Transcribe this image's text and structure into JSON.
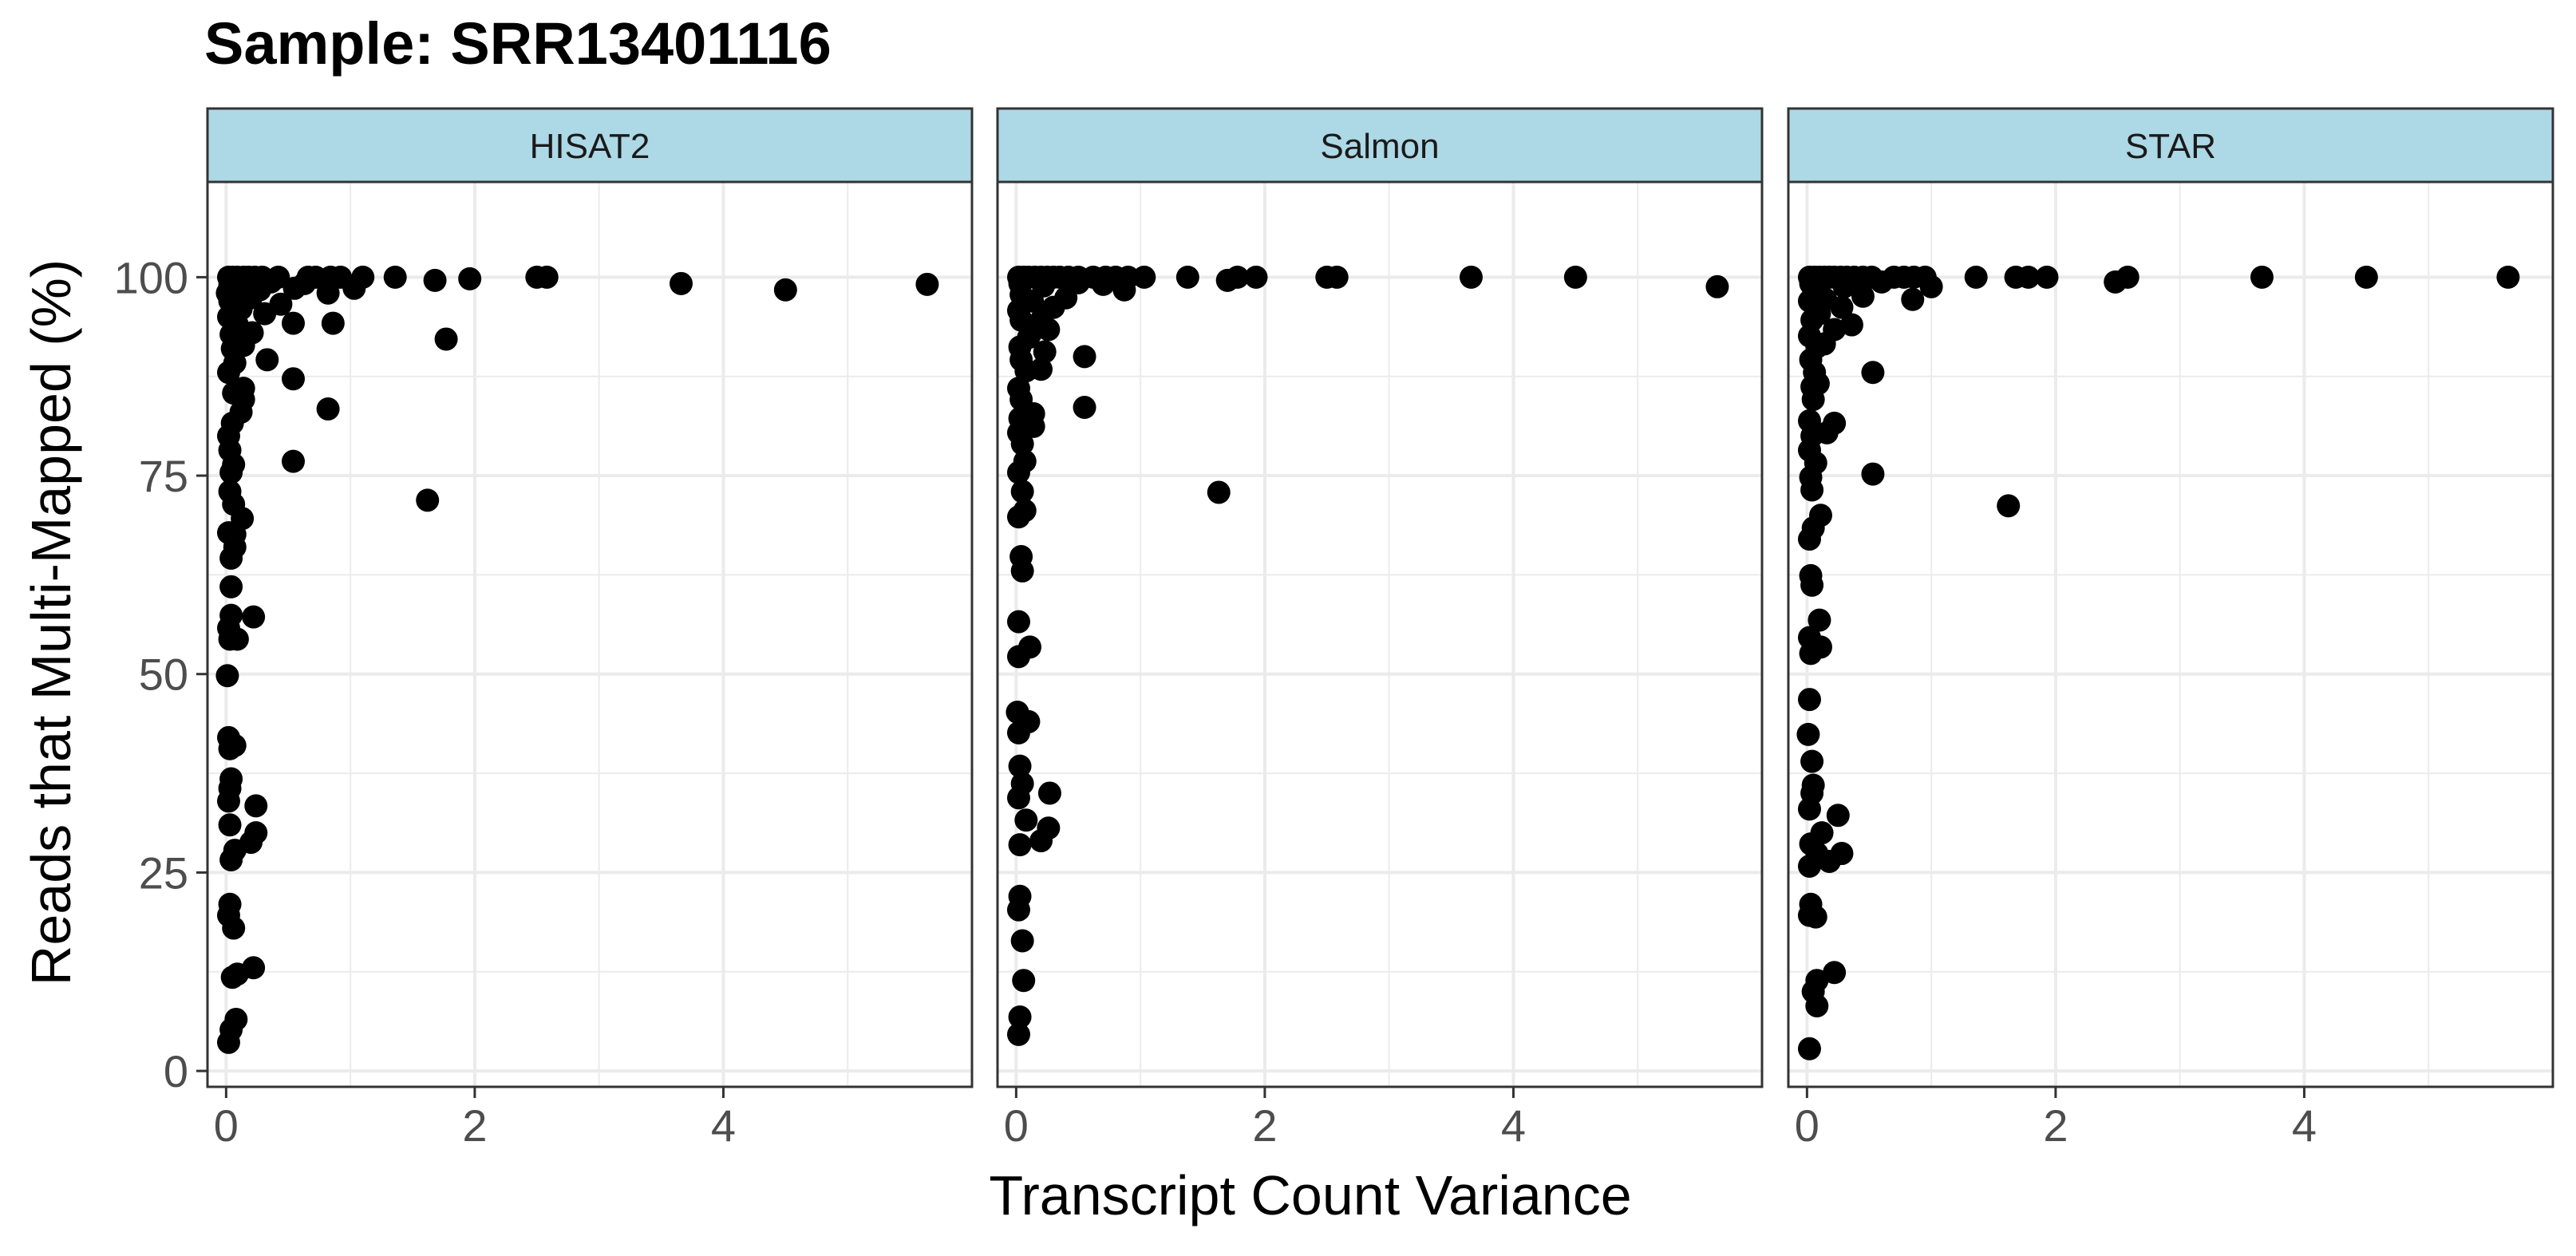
{
  "chart_data": {
    "type": "scatter",
    "title": "Sample: SRR13401116",
    "xlabel": "Transcript Count Variance",
    "ylabel": "Reads that Multi-Mapped (%)",
    "xlim": [
      -0.15,
      6.0
    ],
    "ylim": [
      -2,
      112
    ],
    "x_ticks": [
      0,
      2,
      4
    ],
    "y_ticks": [
      0,
      25,
      50,
      75,
      100
    ],
    "x_minor_ticks": [
      1,
      3,
      5
    ],
    "y_minor_ticks": [
      12.5,
      37.5,
      62.5,
      87.5
    ],
    "grid": true,
    "legend": "none",
    "colors": {
      "point": "#000000",
      "strip_fill": "#add8e6",
      "grid": "#ebebeb",
      "panel_border": "#333333"
    },
    "panels": [
      {
        "name": "HISAT2",
        "points": [
          [
            0.02,
            3.6
          ],
          [
            0.04,
            5.2
          ],
          [
            0.08,
            6.5
          ],
          [
            0.05,
            11.8
          ],
          [
            0.09,
            12.2
          ],
          [
            0.22,
            13.0
          ],
          [
            0.06,
            18.0
          ],
          [
            0.02,
            19.6
          ],
          [
            0.03,
            21.0
          ],
          [
            0.04,
            26.6
          ],
          [
            0.07,
            27.8
          ],
          [
            0.2,
            28.8
          ],
          [
            0.24,
            30.0
          ],
          [
            0.03,
            31.0
          ],
          [
            0.24,
            33.4
          ],
          [
            0.02,
            34.0
          ],
          [
            0.03,
            35.6
          ],
          [
            0.04,
            36.8
          ],
          [
            0.03,
            40.6
          ],
          [
            0.07,
            41.0
          ],
          [
            0.02,
            42.0
          ],
          [
            0.01,
            49.8
          ],
          [
            0.03,
            54.4
          ],
          [
            0.09,
            54.4
          ],
          [
            0.02,
            55.8
          ],
          [
            0.04,
            57.4
          ],
          [
            0.22,
            57.2
          ],
          [
            0.04,
            61.0
          ],
          [
            0.04,
            64.6
          ],
          [
            0.07,
            66.0
          ],
          [
            0.02,
            67.8
          ],
          [
            0.07,
            67.6
          ],
          [
            0.13,
            69.6
          ],
          [
            0.06,
            71.4
          ],
          [
            1.62,
            71.9
          ],
          [
            0.03,
            73.0
          ],
          [
            0.04,
            75.4
          ],
          [
            0.06,
            76.4
          ],
          [
            0.54,
            76.8
          ],
          [
            0.03,
            78.2
          ],
          [
            0.02,
            80.0
          ],
          [
            0.05,
            81.6
          ],
          [
            0.12,
            83.0
          ],
          [
            0.14,
            84.6
          ],
          [
            0.82,
            83.4
          ],
          [
            0.06,
            85.4
          ],
          [
            0.14,
            86.0
          ],
          [
            0.54,
            87.2
          ],
          [
            0.02,
            88.0
          ],
          [
            0.07,
            89.2
          ],
          [
            0.33,
            89.6
          ],
          [
            0.05,
            91.0
          ],
          [
            0.14,
            91.4
          ],
          [
            1.77,
            92.2
          ],
          [
            0.04,
            92.8
          ],
          [
            0.21,
            93.0
          ],
          [
            0.09,
            94.0
          ],
          [
            0.54,
            94.2
          ],
          [
            0.86,
            94.2
          ],
          [
            0.02,
            95.0
          ],
          [
            0.31,
            95.4
          ],
          [
            0.12,
            96.0
          ],
          [
            0.44,
            96.6
          ],
          [
            0.03,
            97.0
          ],
          [
            0.2,
            97.4
          ],
          [
            0.01,
            98.0
          ],
          [
            0.09,
            98.2
          ],
          [
            0.27,
            98.4
          ],
          [
            0.55,
            98.6
          ],
          [
            0.82,
            98.0
          ],
          [
            1.03,
            98.6
          ],
          [
            4.5,
            98.4
          ],
          [
            0.03,
            99.0
          ],
          [
            0.11,
            99.2
          ],
          [
            0.22,
            99.4
          ],
          [
            0.36,
            99.4
          ],
          [
            0.63,
            99.2
          ],
          [
            1.68,
            99.6
          ],
          [
            3.66,
            99.2
          ],
          [
            5.64,
            99.1
          ],
          [
            0.02,
            100.0
          ],
          [
            0.05,
            100.0
          ],
          [
            0.09,
            100.0
          ],
          [
            0.14,
            100.0
          ],
          [
            0.18,
            100.0
          ],
          [
            0.23,
            100.0
          ],
          [
            0.29,
            100.0
          ],
          [
            0.42,
            100.0
          ],
          [
            0.66,
            100.0
          ],
          [
            0.72,
            100.0
          ],
          [
            0.84,
            100.0
          ],
          [
            0.92,
            100.0
          ],
          [
            1.1,
            100.0
          ],
          [
            1.36,
            100.0
          ],
          [
            1.96,
            99.8
          ],
          [
            2.5,
            100.0
          ],
          [
            2.58,
            100.0
          ]
        ]
      },
      {
        "name": "Salmon",
        "points": [
          [
            0.02,
            4.6
          ],
          [
            0.03,
            6.8
          ],
          [
            0.06,
            11.4
          ],
          [
            0.05,
            16.4
          ],
          [
            0.02,
            20.3
          ],
          [
            0.03,
            22.0
          ],
          [
            0.03,
            28.5
          ],
          [
            0.2,
            29.0
          ],
          [
            0.26,
            30.6
          ],
          [
            0.08,
            31.6
          ],
          [
            0.02,
            34.4
          ],
          [
            0.27,
            35.0
          ],
          [
            0.05,
            36.2
          ],
          [
            0.03,
            38.4
          ],
          [
            0.02,
            42.6
          ],
          [
            0.1,
            44.0
          ],
          [
            0.01,
            45.2
          ],
          [
            0.02,
            52.2
          ],
          [
            0.11,
            53.4
          ],
          [
            0.02,
            56.6
          ],
          [
            0.05,
            63.0
          ],
          [
            0.04,
            64.8
          ],
          [
            0.02,
            69.8
          ],
          [
            0.07,
            70.6
          ],
          [
            0.05,
            73.0
          ],
          [
            1.63,
            72.9
          ],
          [
            0.02,
            75.4
          ],
          [
            0.07,
            76.8
          ],
          [
            0.05,
            79.0
          ],
          [
            0.02,
            80.4
          ],
          [
            0.14,
            81.2
          ],
          [
            0.03,
            82.2
          ],
          [
            0.14,
            82.8
          ],
          [
            0.55,
            83.6
          ],
          [
            0.04,
            84.6
          ],
          [
            0.02,
            86.0
          ],
          [
            0.08,
            88.2
          ],
          [
            0.2,
            88.4
          ],
          [
            0.04,
            89.6
          ],
          [
            0.55,
            90.0
          ],
          [
            0.23,
            90.6
          ],
          [
            0.03,
            91.2
          ],
          [
            0.1,
            92.4
          ],
          [
            0.12,
            93.0
          ],
          [
            0.26,
            93.4
          ],
          [
            0.04,
            94.6
          ],
          [
            0.21,
            94.8
          ],
          [
            0.02,
            95.8
          ],
          [
            0.3,
            96.2
          ],
          [
            0.13,
            97.0
          ],
          [
            0.4,
            97.4
          ],
          [
            0.04,
            97.8
          ],
          [
            0.87,
            98.4
          ],
          [
            5.64,
            98.8
          ],
          [
            0.22,
            98.9
          ],
          [
            0.03,
            99.2
          ],
          [
            0.5,
            99.3
          ],
          [
            0.7,
            99.1
          ],
          [
            1.7,
            99.6
          ],
          [
            0.02,
            100.0
          ],
          [
            0.06,
            100.0
          ],
          [
            0.1,
            100.0
          ],
          [
            0.15,
            100.0
          ],
          [
            0.2,
            100.0
          ],
          [
            0.25,
            100.0
          ],
          [
            0.3,
            100.0
          ],
          [
            0.35,
            100.0
          ],
          [
            0.42,
            100.0
          ],
          [
            0.5,
            100.0
          ],
          [
            0.62,
            100.0
          ],
          [
            0.72,
            100.0
          ],
          [
            0.8,
            100.0
          ],
          [
            0.9,
            100.0
          ],
          [
            1.03,
            100.0
          ],
          [
            1.38,
            100.0
          ],
          [
            1.78,
            100.0
          ],
          [
            1.93,
            100.0
          ],
          [
            2.5,
            100.0
          ],
          [
            2.58,
            100.0
          ],
          [
            3.66,
            100.0
          ],
          [
            4.5,
            100.0
          ]
        ]
      },
      {
        "name": "STAR",
        "points": [
          [
            0.02,
            2.8
          ],
          [
            0.08,
            8.2
          ],
          [
            0.05,
            10.0
          ],
          [
            0.08,
            11.4
          ],
          [
            0.22,
            12.4
          ],
          [
            0.02,
            19.6
          ],
          [
            0.07,
            19.4
          ],
          [
            0.03,
            21.0
          ],
          [
            0.02,
            25.8
          ],
          [
            0.08,
            27.4
          ],
          [
            0.18,
            26.4
          ],
          [
            0.28,
            27.4
          ],
          [
            0.03,
            28.6
          ],
          [
            0.12,
            30.0
          ],
          [
            0.25,
            32.2
          ],
          [
            0.02,
            33.0
          ],
          [
            0.04,
            35.0
          ],
          [
            0.05,
            36.0
          ],
          [
            0.04,
            39.0
          ],
          [
            0.01,
            42.4
          ],
          [
            0.02,
            46.8
          ],
          [
            0.03,
            52.6
          ],
          [
            0.11,
            53.4
          ],
          [
            0.02,
            54.6
          ],
          [
            0.1,
            56.8
          ],
          [
            0.04,
            61.2
          ],
          [
            0.03,
            62.4
          ],
          [
            0.02,
            67.0
          ],
          [
            0.05,
            68.4
          ],
          [
            0.11,
            70.0
          ],
          [
            1.62,
            71.2
          ],
          [
            0.04,
            73.2
          ],
          [
            0.03,
            74.8
          ],
          [
            0.53,
            75.2
          ],
          [
            0.07,
            76.6
          ],
          [
            0.02,
            78.2
          ],
          [
            0.04,
            80.0
          ],
          [
            0.16,
            80.4
          ],
          [
            0.22,
            81.6
          ],
          [
            0.02,
            81.9
          ],
          [
            0.05,
            84.6
          ],
          [
            0.04,
            86.2
          ],
          [
            0.09,
            86.6
          ],
          [
            0.06,
            88.0
          ],
          [
            0.53,
            88.0
          ],
          [
            0.03,
            89.6
          ],
          [
            0.08,
            91.2
          ],
          [
            0.14,
            91.6
          ],
          [
            0.02,
            92.6
          ],
          [
            0.22,
            93.4
          ],
          [
            0.36,
            94.0
          ],
          [
            0.04,
            94.6
          ],
          [
            0.1,
            95.4
          ],
          [
            0.28,
            96.2
          ],
          [
            0.02,
            97.0
          ],
          [
            0.15,
            97.2
          ],
          [
            0.45,
            97.6
          ],
          [
            0.85,
            97.2
          ],
          [
            0.05,
            98.6
          ],
          [
            0.3,
            98.8
          ],
          [
            1.0,
            98.8
          ],
          [
            0.03,
            99.2
          ],
          [
            2.48,
            99.4
          ],
          [
            0.12,
            99.6
          ],
          [
            0.6,
            99.4
          ],
          [
            0.02,
            100.0
          ],
          [
            0.06,
            100.0
          ],
          [
            0.1,
            100.0
          ],
          [
            0.14,
            100.0
          ],
          [
            0.18,
            100.0
          ],
          [
            0.22,
            100.0
          ],
          [
            0.27,
            100.0
          ],
          [
            0.32,
            100.0
          ],
          [
            0.38,
            100.0
          ],
          [
            0.45,
            100.0
          ],
          [
            0.52,
            100.0
          ],
          [
            0.7,
            100.0
          ],
          [
            0.78,
            100.0
          ],
          [
            0.86,
            100.0
          ],
          [
            0.95,
            100.0
          ],
          [
            1.36,
            100.0
          ],
          [
            1.68,
            100.0
          ],
          [
            1.78,
            100.0
          ],
          [
            1.93,
            100.0
          ],
          [
            2.58,
            100.0
          ],
          [
            3.66,
            100.0
          ],
          [
            4.5,
            100.0
          ],
          [
            5.64,
            100.0
          ]
        ]
      }
    ]
  }
}
